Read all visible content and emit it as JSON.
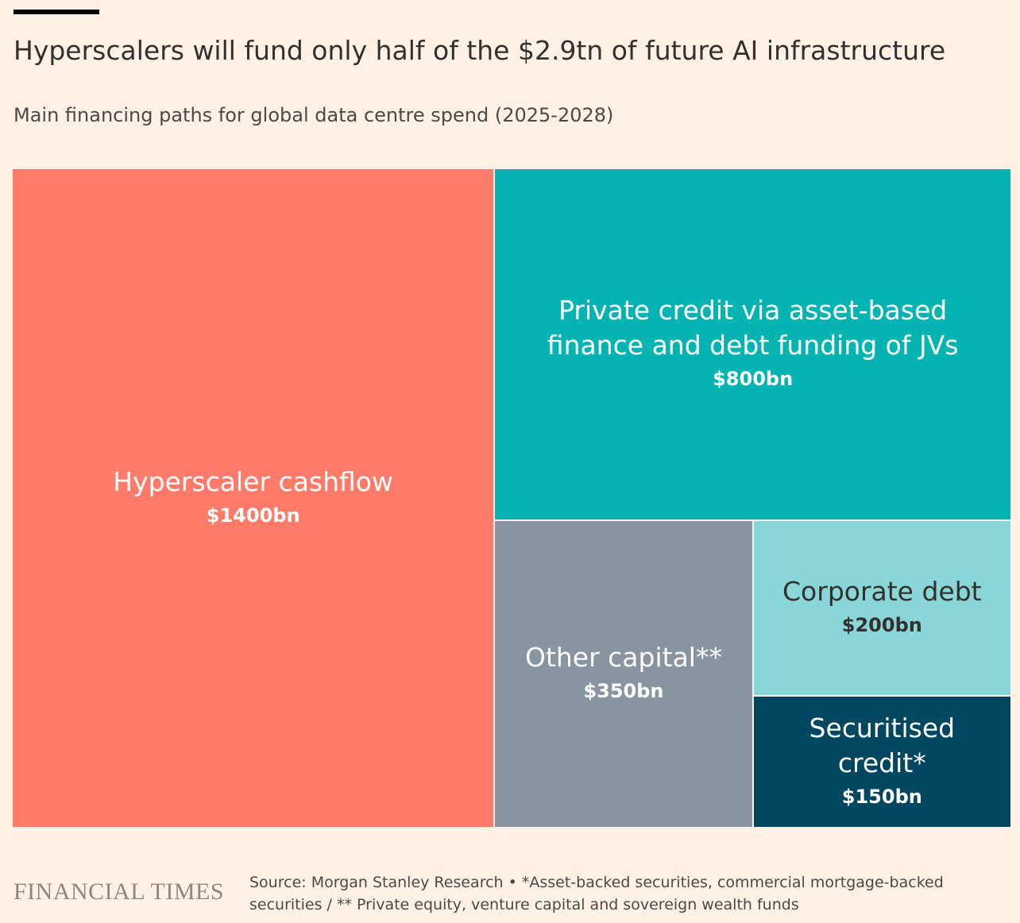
{
  "title": "Hyperscalers will fund only half of the $2.9tn of future AI infrastructure",
  "subtitle": "Main financing paths for global data centre spend (2025-2028)",
  "brand": "FINANCIAL TIMES",
  "source": "Source: Morgan Stanley Research • *Asset-backed securities, commercial mortgage-backed securities / ** Private equity, venture capital and sovereign wealth funds",
  "colors": {
    "background": "#fff1e5",
    "hyperscaler": "#ff7a68",
    "private_credit": "#04b4b3",
    "other_capital": "#88949f",
    "corporate_debt": "#89d6d8",
    "securitised_credit": "#00475f"
  },
  "chart_data": {
    "type": "treemap",
    "title": "Hyperscalers will fund only half of the $2.9tn of future AI infrastructure",
    "subtitle": "Main financing paths for global data centre spend (2025-2028)",
    "unit": "$bn",
    "total": 2900,
    "items": [
      {
        "name": "Hyperscaler cashflow",
        "value": 1400,
        "value_label": "$1400bn",
        "color": "#ff7a68",
        "text_color": "#ffffff"
      },
      {
        "name": "Private credit via asset-based finance and debt funding of JVs",
        "value": 800,
        "value_label": "$800bn",
        "color": "#04b4b3",
        "text_color": "#ffffff"
      },
      {
        "name": "Other capital**",
        "value": 350,
        "value_label": "$350bn",
        "color": "#88949f",
        "text_color": "#ffffff"
      },
      {
        "name": "Corporate debt",
        "value": 200,
        "value_label": "$200bn",
        "color": "#89d6d8",
        "text_color": "#33302e"
      },
      {
        "name": "Securitised credit*",
        "value": 150,
        "value_label": "$150bn",
        "color": "#00475f",
        "text_color": "#ffffff"
      }
    ]
  }
}
